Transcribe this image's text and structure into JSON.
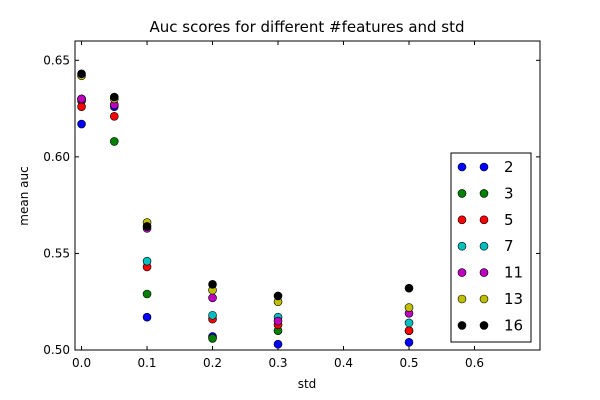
{
  "chart_data": {
    "type": "scatter",
    "title": "Auc scores for different #features and std",
    "xlabel": "std",
    "ylabel": "mean auc",
    "xlim": [
      -0.01,
      0.7
    ],
    "ylim": [
      0.5,
      0.66
    ],
    "xticks": [
      0.0,
      0.1,
      0.2,
      0.3,
      0.4,
      0.5,
      0.6
    ],
    "xtick_labels": [
      "0.0",
      "0.1",
      "0.2",
      "0.3",
      "0.4",
      "0.5",
      "0.6"
    ],
    "yticks": [
      0.5,
      0.55,
      0.6,
      0.65
    ],
    "ytick_labels": [
      "0.50",
      "0.55",
      "0.60",
      "0.65"
    ],
    "grid": false,
    "legend_placement": "lower-right",
    "x": [
      0.0,
      0.05,
      0.1,
      0.2,
      0.3,
      0.5
    ],
    "series": [
      {
        "name": "2",
        "color": "#0000ff",
        "values": [
          0.617,
          0.626,
          0.517,
          0.507,
          0.503,
          0.504
        ]
      },
      {
        "name": "3",
        "color": "#008000",
        "values": [
          0.629,
          0.608,
          0.529,
          0.506,
          0.51,
          0.51
        ]
      },
      {
        "name": "5",
        "color": "#ff0000",
        "values": [
          0.626,
          0.621,
          0.543,
          0.516,
          0.513,
          0.51
        ]
      },
      {
        "name": "7",
        "color": "#00bfbf",
        "values": [
          0.63,
          0.627,
          0.546,
          0.518,
          0.517,
          0.514
        ]
      },
      {
        "name": "11",
        "color": "#bf00bf",
        "values": [
          0.63,
          0.627,
          0.563,
          0.527,
          0.515,
          0.519
        ]
      },
      {
        "name": "13",
        "color": "#bfbf00",
        "values": [
          0.642,
          0.63,
          0.566,
          0.531,
          0.525,
          0.522
        ]
      },
      {
        "name": "16",
        "color": "#000000",
        "values": [
          0.643,
          0.631,
          0.564,
          0.534,
          0.528,
          0.532
        ]
      }
    ]
  }
}
